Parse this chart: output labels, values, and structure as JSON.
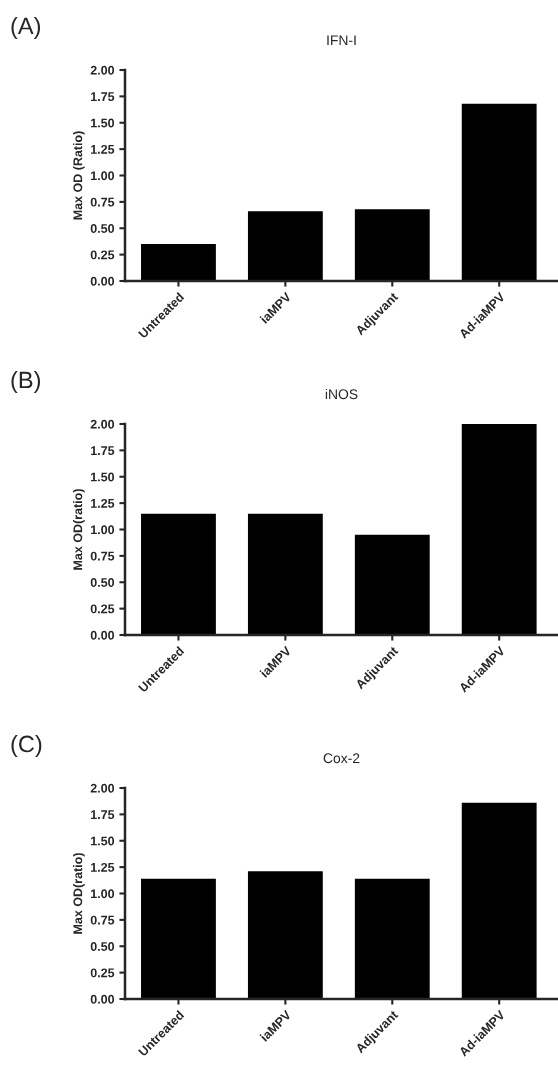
{
  "chart_data": [
    {
      "type": "bar",
      "title": "IFN-I",
      "ylabel": "Max OD (Ratio)",
      "annotations": [
        "(A)"
      ],
      "categories": [
        "Untreated",
        "iaMPV",
        "Adjuvant",
        "Ad-iaMPV"
      ],
      "values": [
        0.35,
        0.66,
        0.68,
        1.68
      ],
      "color": "#000000",
      "ylim": [
        0,
        2.0
      ],
      "yticks": [
        {
          "value": 0,
          "label": "0.00"
        },
        {
          "value": 0.25,
          "label": "0.25"
        },
        {
          "value": 0.5,
          "label": "0.50"
        },
        {
          "value": 0.75,
          "label": "0.75"
        },
        {
          "value": 1.0,
          "label": "1.00"
        },
        {
          "value": 1.25,
          "label": "1.25"
        },
        {
          "value": 1.5,
          "label": "1.50"
        },
        {
          "value": 1.75,
          "label": "1.75"
        },
        {
          "value": 2.0,
          "label": "2.00"
        }
      ]
    },
    {
      "type": "bar",
      "title": "iNOS",
      "ylabel": "Max OD(ratio)",
      "annotations": [
        "(B)"
      ],
      "categories": [
        "Untreated",
        "iaMPV",
        "Adjuvant",
        "Ad-iaMPV"
      ],
      "values": [
        1.15,
        1.15,
        0.95,
        2.0
      ],
      "color": "#000000",
      "ylim": [
        0,
        2.0
      ],
      "yticks": [
        {
          "value": 0,
          "label": "0.00"
        },
        {
          "value": 0.25,
          "label": "0.25"
        },
        {
          "value": 0.5,
          "label": "0.50"
        },
        {
          "value": 0.75,
          "label": "0.75"
        },
        {
          "value": 1.0,
          "label": "1.00"
        },
        {
          "value": 1.25,
          "label": "1.25"
        },
        {
          "value": 1.5,
          "label": "1.50"
        },
        {
          "value": 1.75,
          "label": "1.75"
        },
        {
          "value": 2.0,
          "label": "2.00"
        }
      ]
    },
    {
      "type": "bar",
      "title": "Cox-2",
      "ylabel": "Max OD(ratio)",
      "annotations": [
        "(C)"
      ],
      "categories": [
        "Untreated",
        "iaMPV",
        "Adjuvant",
        "Ad-iaMPV"
      ],
      "values": [
        1.14,
        1.21,
        1.14,
        1.86
      ],
      "color": "#000000",
      "ylim": [
        0,
        2.0
      ],
      "yticks": [
        {
          "value": 0,
          "label": "0.00"
        },
        {
          "value": 0.25,
          "label": "0.25"
        },
        {
          "value": 0.5,
          "label": "0.50"
        },
        {
          "value": 0.75,
          "label": "0.75"
        },
        {
          "value": 1.0,
          "label": "1.00"
        },
        {
          "value": 1.25,
          "label": "1.25"
        },
        {
          "value": 1.5,
          "label": "1.50"
        },
        {
          "value": 1.75,
          "label": "1.75"
        },
        {
          "value": 2.0,
          "label": "2.00"
        }
      ]
    }
  ]
}
